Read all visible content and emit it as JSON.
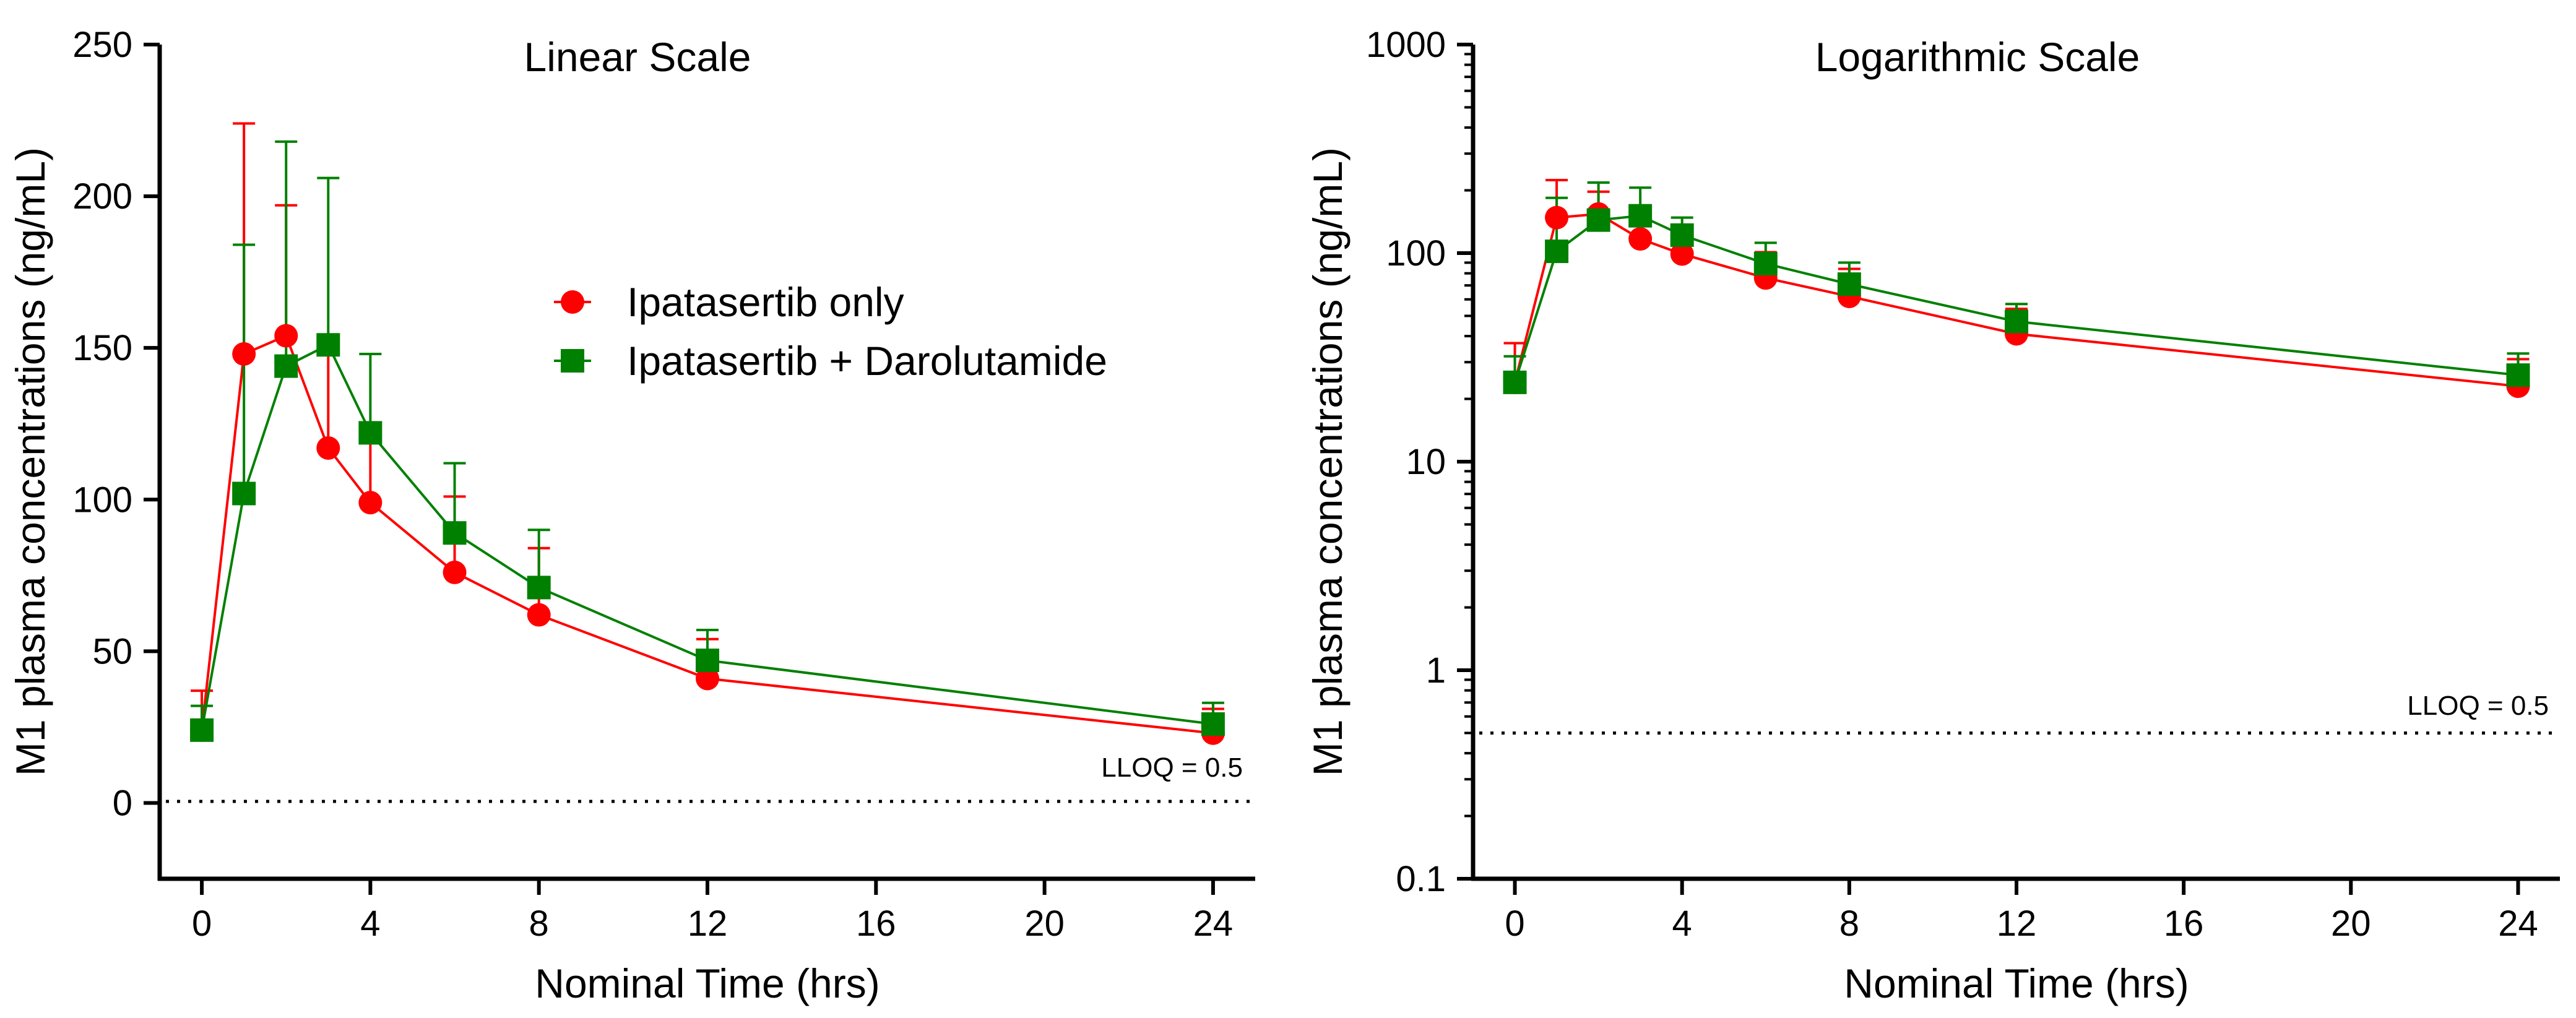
{
  "chart_data": [
    {
      "type": "line",
      "title": "Linear Scale",
      "xlabel": "Nominal Time (hrs)",
      "ylabel": "M1 plasma concentrations (ng/mL)",
      "xlim": [
        -1,
        25
      ],
      "ylim": [
        -25,
        250
      ],
      "xticks": [
        0,
        4,
        8,
        12,
        16,
        20,
        24
      ],
      "yticks": [
        0,
        50,
        100,
        150,
        200,
        250
      ],
      "yscale": "linear",
      "grid": false,
      "legend": "upper-right area",
      "x": [
        0,
        1,
        2,
        3,
        4,
        6,
        8,
        12,
        24
      ],
      "series": [
        {
          "name": "Ipatasertib only",
          "color": "#ff0000",
          "marker": "circle",
          "values": [
            24,
            148,
            154,
            117,
            99,
            76,
            62,
            41,
            23
          ],
          "error_upper": [
            37,
            224,
            197,
            151,
            125,
            101,
            84,
            54,
            31
          ]
        },
        {
          "name": "Ipatasertib + Darolutamide",
          "color": "#008000",
          "marker": "square",
          "values": [
            24,
            102,
            144,
            151,
            122,
            89,
            71,
            47,
            26
          ],
          "error_upper": [
            32,
            184,
            218,
            206,
            148,
            112,
            90,
            57,
            33
          ]
        }
      ],
      "reference_line": {
        "y": 0.5,
        "label": "LLOQ = 0.5",
        "style": "dotted"
      }
    },
    {
      "type": "line",
      "title": "Logarithmic Scale",
      "xlabel": "Nominal Time (hrs)",
      "ylabel": "M1 plasma concentrations (ng/mL)",
      "xlim": [
        -1,
        25
      ],
      "ylim": [
        0.1,
        1000
      ],
      "xticks": [
        0,
        4,
        8,
        12,
        16,
        20,
        24
      ],
      "yticks": [
        0.1,
        1,
        10,
        100,
        1000
      ],
      "ytick_labels": [
        "0.1",
        "1",
        "10",
        "100",
        "1000"
      ],
      "yscale": "log",
      "grid": false,
      "x": [
        0,
        1,
        2,
        3,
        4,
        6,
        8,
        12,
        24
      ],
      "series": [
        {
          "name": "Ipatasertib only",
          "color": "#ff0000",
          "marker": "circle",
          "values": [
            24,
            148,
            154,
            117,
            99,
            76,
            62,
            41,
            23
          ],
          "error_upper": [
            37,
            224,
            197,
            151,
            125,
            101,
            84,
            54,
            31
          ]
        },
        {
          "name": "Ipatasertib + Darolutamide",
          "color": "#008000",
          "marker": "square",
          "values": [
            24,
            102,
            144,
            151,
            122,
            89,
            71,
            47,
            26
          ],
          "error_upper": [
            32,
            184,
            218,
            206,
            148,
            112,
            90,
            57,
            33
          ]
        }
      ],
      "reference_line": {
        "y": 0.5,
        "label": "LLOQ = 0.5",
        "style": "dotted"
      }
    }
  ]
}
